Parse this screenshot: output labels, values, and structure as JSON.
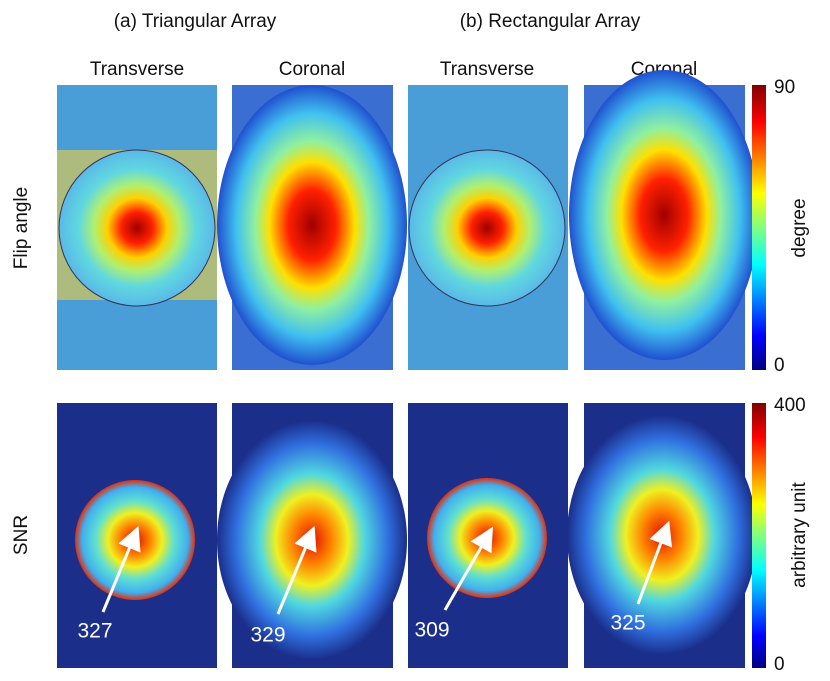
{
  "groups": [
    {
      "title": "(a) Triangular Array"
    },
    {
      "title": "(b) Rectangular Array"
    }
  ],
  "columns": [
    "Transverse",
    "Coronal",
    "Transverse",
    "Coronal"
  ],
  "rows": [
    {
      "label": "Flip angle",
      "colorbar": {
        "max": 90,
        "min": 0,
        "unit": "degree"
      }
    },
    {
      "label": "SNR",
      "colorbar": {
        "max": 400,
        "min": 0,
        "unit": "arbitrary unit"
      },
      "annotations": [
        327,
        329,
        309,
        325
      ]
    }
  ]
}
